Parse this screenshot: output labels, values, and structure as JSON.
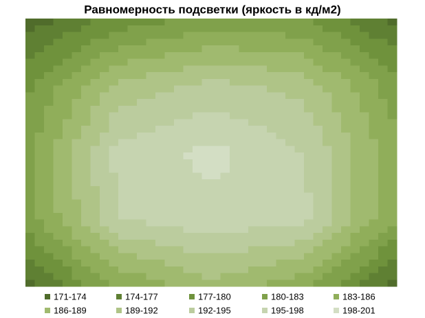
{
  "chart_data": {
    "type": "contour",
    "title": "Равномерность подсветки (яркость в кд/м2)",
    "z": [
      [
        172,
        178,
        181,
        180,
        173
      ],
      [
        179,
        190,
        193,
        191,
        181
      ],
      [
        182,
        196,
        199,
        195,
        184
      ],
      [
        181,
        195,
        197,
        196,
        183
      ],
      [
        173,
        183,
        188,
        184,
        172
      ]
    ],
    "levels": [
      171,
      174,
      177,
      180,
      183,
      186,
      189,
      192,
      195,
      198,
      201
    ],
    "series": [
      {
        "name": "171-174",
        "color": "#506c2b"
      },
      {
        "name": "174-177",
        "color": "#5f8033"
      },
      {
        "name": "177-180",
        "color": "#6f923c"
      },
      {
        "name": "180-183",
        "color": "#80a14b"
      },
      {
        "name": "183-186",
        "color": "#90ae5a"
      },
      {
        "name": "186-189",
        "color": "#a0ba6f"
      },
      {
        "name": "189-192",
        "color": "#afc487"
      },
      {
        "name": "192-195",
        "color": "#bbcc9e"
      },
      {
        "name": "195-198",
        "color": "#c6d4b0"
      },
      {
        "name": "198-201",
        "color": "#d3dec4"
      }
    ]
  }
}
